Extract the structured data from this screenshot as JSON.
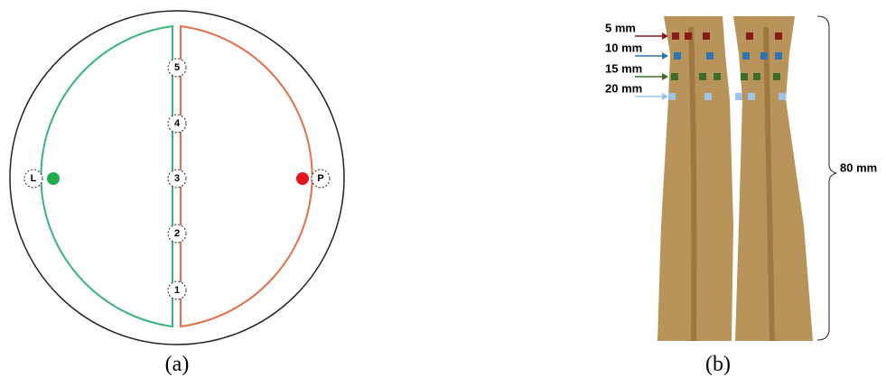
{
  "panel_a": {
    "caption": "(a)",
    "points": [
      "5",
      "4",
      "3",
      "2",
      "1"
    ],
    "left_label": "L",
    "right_label": "P"
  },
  "panel_b": {
    "caption": "(b)",
    "depths": [
      "5 mm",
      "10 mm",
      "15 mm",
      "20 mm"
    ],
    "length": "80 mm"
  }
}
